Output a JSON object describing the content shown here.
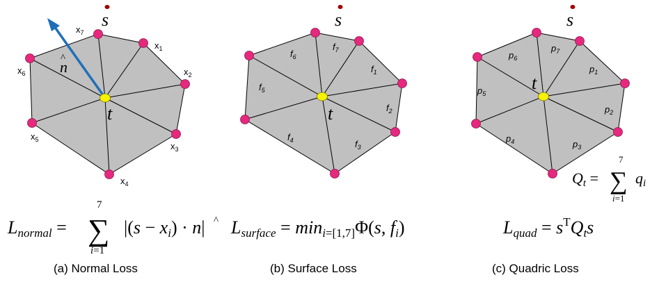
{
  "panels": [
    {
      "id": "normal",
      "caption": "(a)  Normal Loss",
      "sample_label": "s",
      "center_label": "t",
      "normal_label": "n",
      "labels": [
        "x1",
        "x2",
        "x3",
        "x4",
        "x5",
        "x6",
        "x7"
      ],
      "formula": "L_normal = Σ_{i=1}^{7} |(s − x_i) · n̂|"
    },
    {
      "id": "surface",
      "caption": "(b)  Surface Loss",
      "sample_label": "s",
      "center_label": "t",
      "labels": [
        "f1",
        "f2",
        "f3",
        "f4",
        "f5",
        "f6",
        "f7"
      ],
      "formula": "L_surface = min_{i=[1,7]} Φ(s, f_i)"
    },
    {
      "id": "quadric",
      "caption": "(c)  Quadric Loss",
      "sample_label": "s",
      "center_label": "t",
      "labels": [
        "p1",
        "p2",
        "p3",
        "p4",
        "p5",
        "p6",
        "p7"
      ],
      "formula": "L_quad = s^T Q_t s",
      "side_formula": "Q_t = Σ_{i=1}^{7} q_i"
    }
  ],
  "colors": {
    "face_fill": "#c0c0c0",
    "edge": "#000000",
    "vertex": "#e6287f",
    "center": "#f7f200",
    "sample": "#a00000",
    "normal_arrow": "#1f6fb8"
  }
}
